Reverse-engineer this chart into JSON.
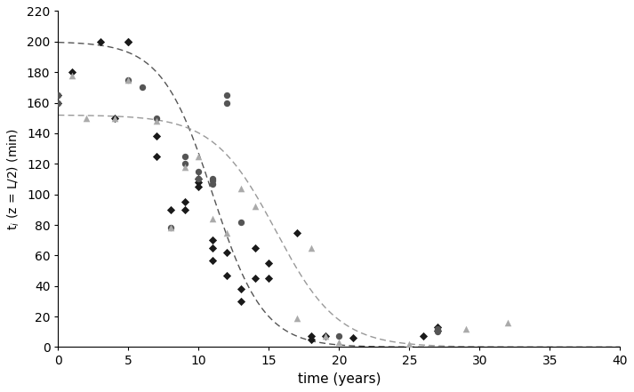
{
  "title": "",
  "xlabel": "time (years)",
  "ylabel": "t$_i$ (z = L/2) (min)",
  "xlim": [
    0,
    40
  ],
  "ylim": [
    0,
    220
  ],
  "xticks": [
    0,
    5,
    10,
    15,
    20,
    25,
    30,
    35,
    40
  ],
  "yticks": [
    0,
    20,
    40,
    60,
    80,
    100,
    120,
    140,
    160,
    180,
    200,
    220
  ],
  "diamonds_x": [
    0,
    0,
    1,
    3,
    4,
    5,
    5,
    7,
    7,
    8,
    9,
    9,
    10,
    10,
    10,
    11,
    11,
    11,
    12,
    12,
    13,
    13,
    14,
    14,
    15,
    15,
    17,
    18,
    18,
    19,
    21,
    26,
    27,
    27
  ],
  "diamonds_y": [
    160,
    165,
    180,
    200,
    150,
    200,
    200,
    138,
    125,
    90,
    95,
    90,
    110,
    108,
    105,
    70,
    65,
    57,
    62,
    47,
    38,
    30,
    65,
    45,
    45,
    55,
    75,
    7,
    5,
    7,
    6,
    7,
    11,
    13
  ],
  "circles_x": [
    0,
    0,
    5,
    6,
    7,
    8,
    9,
    9,
    10,
    10,
    11,
    11,
    11,
    12,
    12,
    13,
    20,
    27,
    27
  ],
  "circles_y": [
    160,
    165,
    175,
    170,
    150,
    78,
    120,
    125,
    110,
    115,
    110,
    107,
    109,
    165,
    160,
    82,
    7,
    10,
    12
  ],
  "triangles_x": [
    1,
    2,
    4,
    5,
    7,
    8,
    9,
    10,
    11,
    12,
    13,
    14,
    17,
    18,
    19,
    20,
    25,
    29,
    32
  ],
  "triangles_y": [
    178,
    150,
    150,
    175,
    148,
    78,
    118,
    125,
    84,
    75,
    104,
    92,
    19,
    65,
    7,
    3,
    2,
    12,
    16
  ],
  "curve1_color": "#555555",
  "curve2_color": "#999999",
  "diamonds_color": "#1a1a1a",
  "circles_color": "#555555",
  "triangles_color": "#aaaaaa",
  "curve1_params": {
    "ti0": 200,
    "t50": 11.0,
    "k": 0.55
  },
  "curve2_params": {
    "ti0": 152,
    "t50": 15.5,
    "k": 0.45
  }
}
